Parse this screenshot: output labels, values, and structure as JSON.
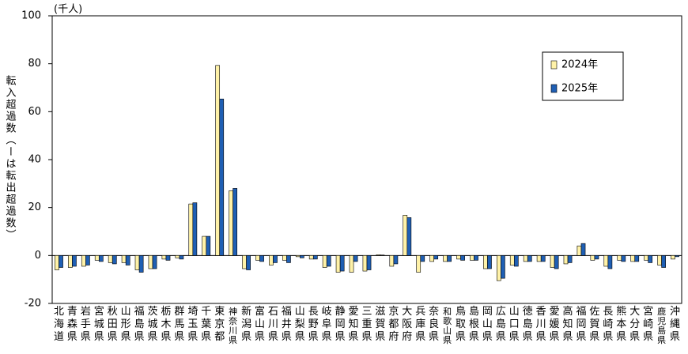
{
  "chart_data": {
    "type": "bar",
    "y_label": "転入超過数（ーは転出超過数）",
    "unit_label": "(千人)",
    "categories": [
      "北海道",
      "青森県",
      "岩手県",
      "宮城県",
      "秋田県",
      "山形県",
      "福島県",
      "茨城県",
      "栃木県",
      "群馬県",
      "埼玉県",
      "千葉県",
      "東京都",
      "神奈川県",
      "新潟県",
      "富山県",
      "石川県",
      "福井県",
      "山梨県",
      "長野県",
      "岐阜県",
      "静岡県",
      "愛知県",
      "三重県",
      "滋賀県",
      "京都府",
      "大阪府",
      "兵庫県",
      "奈良県",
      "和歌山県",
      "鳥取県",
      "島根県",
      "岡山県",
      "広島県",
      "山口県",
      "徳島県",
      "香川県",
      "愛媛県",
      "高知県",
      "福岡県",
      "佐賀県",
      "長崎県",
      "熊本県",
      "大分県",
      "宮崎県",
      "鹿児島県",
      "沖縄県"
    ],
    "series": [
      {
        "name": "2024年",
        "color": "#fff2a8",
        "values": [
          -6,
          -5,
          -4.5,
          -2,
          -3,
          -3,
          -6,
          -5.5,
          -1.5,
          -1,
          21.5,
          8,
          79.3,
          27,
          -5.5,
          -2,
          -4,
          -2,
          -0.5,
          -1.5,
          -5,
          -7,
          -7,
          -6.5,
          0.3,
          -4.5,
          16.8,
          -7,
          -2.5,
          -2.5,
          -1.5,
          -2,
          -5.5,
          -10.5,
          -4,
          -2.5,
          -2.5,
          -5,
          -3.5,
          4,
          -2,
          -4.5,
          -2,
          -2.5,
          -2,
          -4,
          -1.5
        ]
      },
      {
        "name": "2025年",
        "color": "#1f5fb4",
        "values": [
          -5,
          -4.5,
          -4,
          -2.5,
          -3.5,
          -4,
          -7,
          -5.5,
          -2,
          -1.5,
          22,
          8,
          65.3,
          28,
          -6,
          -2.5,
          -3,
          -3,
          -1,
          -1.5,
          -4.5,
          -6.5,
          -2.5,
          -6,
          0.2,
          -3.5,
          15.8,
          -2.5,
          -1.5,
          -2.5,
          -2,
          -2,
          -5.5,
          -9.5,
          -4.5,
          -2.5,
          -2.5,
          -5.5,
          -3,
          5,
          -1.5,
          -5.5,
          -2.5,
          -2.5,
          -3,
          -5,
          -0.5
        ]
      }
    ],
    "ylim": [
      -20,
      100
    ],
    "yticks": [
      -20,
      0,
      20,
      40,
      60,
      80,
      100
    ],
    "grid": false
  }
}
